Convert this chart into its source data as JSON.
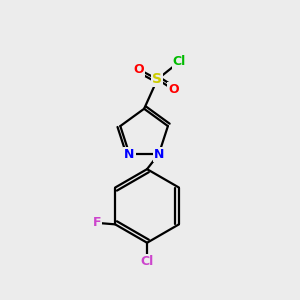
{
  "background_color": "#ececec",
  "bond_color": "#000000",
  "atom_colors": {
    "N": "#0000ff",
    "O": "#ff0000",
    "S": "#cccc00",
    "Cl_green": "#00bb00",
    "Cl_pink": "#cc44cc",
    "F": "#cc44cc"
  },
  "figsize": [
    3.0,
    3.0
  ],
  "dpi": 100
}
